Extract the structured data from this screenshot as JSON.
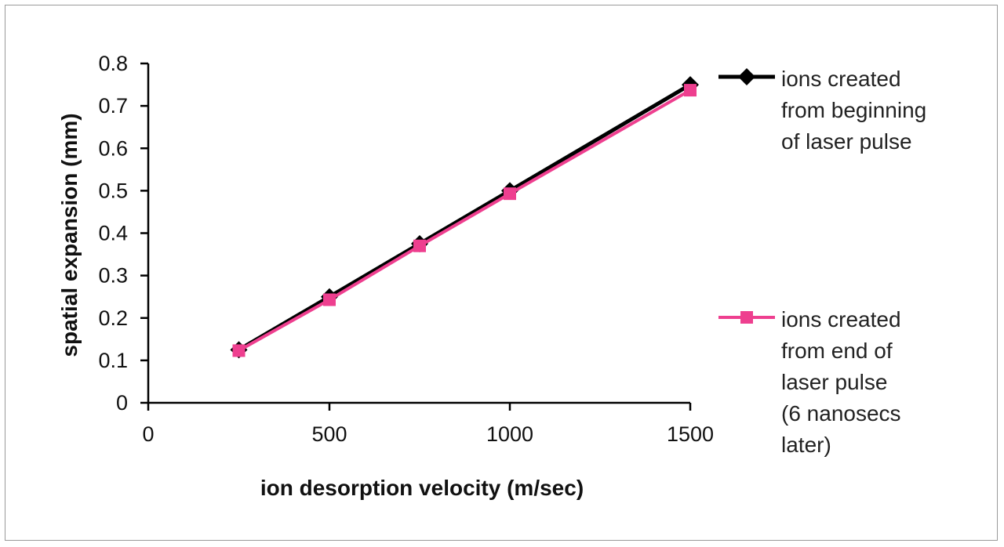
{
  "chart_data": {
    "type": "line",
    "x_categories": [
      "0",
      "500",
      "1000",
      "1500"
    ],
    "xlabel": "ion desorption velocity (m/sec)",
    "ylabel": "spatial expansion (mm)",
    "ylim": [
      0,
      0.8
    ],
    "y_ticks": [
      "0",
      "0.1",
      "0.2",
      "0.3",
      "0.4",
      "0.5",
      "0.6",
      "0.7",
      "0.8"
    ],
    "grid": false,
    "legend_position": "right",
    "series": [
      {
        "name_lines": [
          "ions created",
          "from beginning",
          "of laser pulse"
        ],
        "color": "#000000",
        "marker": "diamond",
        "x": [
          250,
          500,
          750,
          1000,
          1500
        ],
        "y": [
          0.125,
          0.25,
          0.375,
          0.5,
          0.75
        ]
      },
      {
        "name_lines": [
          "ions created",
          "from end of",
          "laser pulse",
          "(6 nanosecs",
          "later)"
        ],
        "color": "#ee3f8f",
        "marker": "square",
        "x": [
          250,
          500,
          750,
          1000,
          1500
        ],
        "y": [
          0.123,
          0.243,
          0.37,
          0.493,
          0.737
        ]
      }
    ]
  }
}
